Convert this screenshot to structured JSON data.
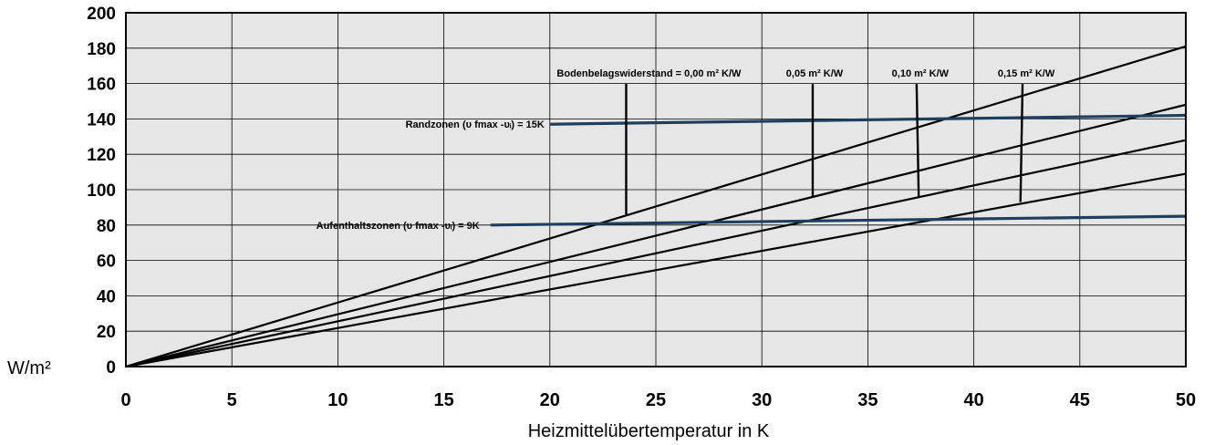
{
  "chart_data": {
    "type": "line",
    "title": "",
    "xlabel": "Heizmittelübertemperatur in K",
    "ylabel": "W/m²",
    "xlim": [
      0,
      50
    ],
    "ylim": [
      0,
      200
    ],
    "x_ticks": [
      0,
      5,
      10,
      15,
      20,
      25,
      30,
      35,
      40,
      45,
      50
    ],
    "y_ticks": [
      0,
      20,
      40,
      60,
      80,
      100,
      120,
      140,
      160,
      180,
      200
    ],
    "grid": true,
    "series": [
      {
        "x": [
          0,
          50
        ],
        "y": [
          0,
          181
        ],
        "color": "#000000"
      },
      {
        "x": [
          0,
          50
        ],
        "y": [
          0,
          148
        ],
        "color": "#000000"
      },
      {
        "x": [
          0,
          50
        ],
        "y": [
          0,
          128
        ],
        "color": "#000000"
      },
      {
        "x": [
          0,
          50
        ],
        "y": [
          0,
          109
        ],
        "color": "#000000"
      }
    ],
    "limit_lines": [
      {
        "label": "Randzonen (υ fmax -υᵢ) = 15K",
        "x": [
          20,
          50
        ],
        "y": [
          137,
          142
        ],
        "color": "#1f3f5f"
      },
      {
        "label": "Aufenthaltszonen (υ fmax -υᵢ) = 9K",
        "x": [
          17.2,
          50
        ],
        "y": [
          80,
          85
        ],
        "color": "#1f3f5f"
      }
    ],
    "resistance_markers": [
      {
        "label": "Bodenbelagswiderstand = 0,00 m² K/W",
        "x": [
          23.6,
          23.6
        ],
        "y": [
          160,
          86
        ]
      },
      {
        "label": "0,05 m² K/W",
        "x": [
          32.4,
          32.4
        ],
        "y": [
          160,
          96
        ]
      },
      {
        "label": "0,10 m² K/W",
        "x": [
          37.3,
          37.4
        ],
        "y": [
          160,
          96
        ]
      },
      {
        "label": "0,15 m² K/W",
        "x": [
          42.3,
          42.2
        ],
        "y": [
          160,
          93
        ]
      }
    ]
  }
}
